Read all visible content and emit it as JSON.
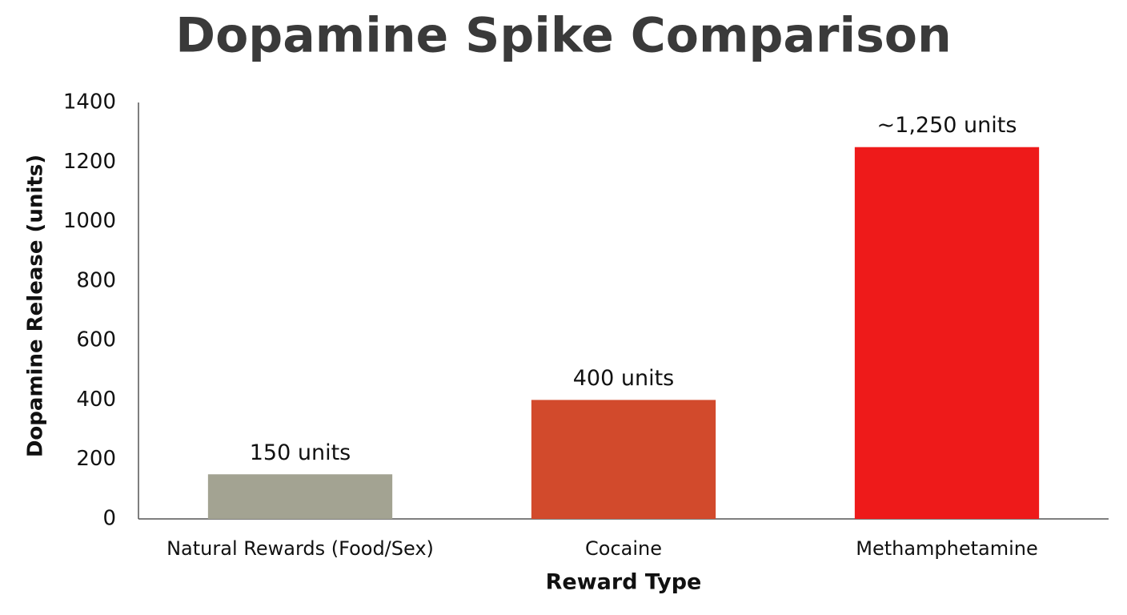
{
  "chart_data": {
    "type": "bar",
    "title": "Dopamine Spike Comparison",
    "x_label": "Reward Type",
    "y_label": "Dopamine Release (units)",
    "categories": [
      "Natural Rewards (Food/Sex)",
      "Cocaine",
      "Methamphetamine"
    ],
    "values": [
      150,
      400,
      1250
    ],
    "value_labels": [
      "150 units",
      "400 units",
      "~1,250 units"
    ],
    "colors": [
      "#a3a392",
      "#d24a2c",
      "#ee1a1a"
    ],
    "ylim": [
      0,
      1400
    ],
    "yticks": [
      0,
      200,
      400,
      600,
      800,
      1000,
      1200,
      1400
    ],
    "grid": false
  }
}
